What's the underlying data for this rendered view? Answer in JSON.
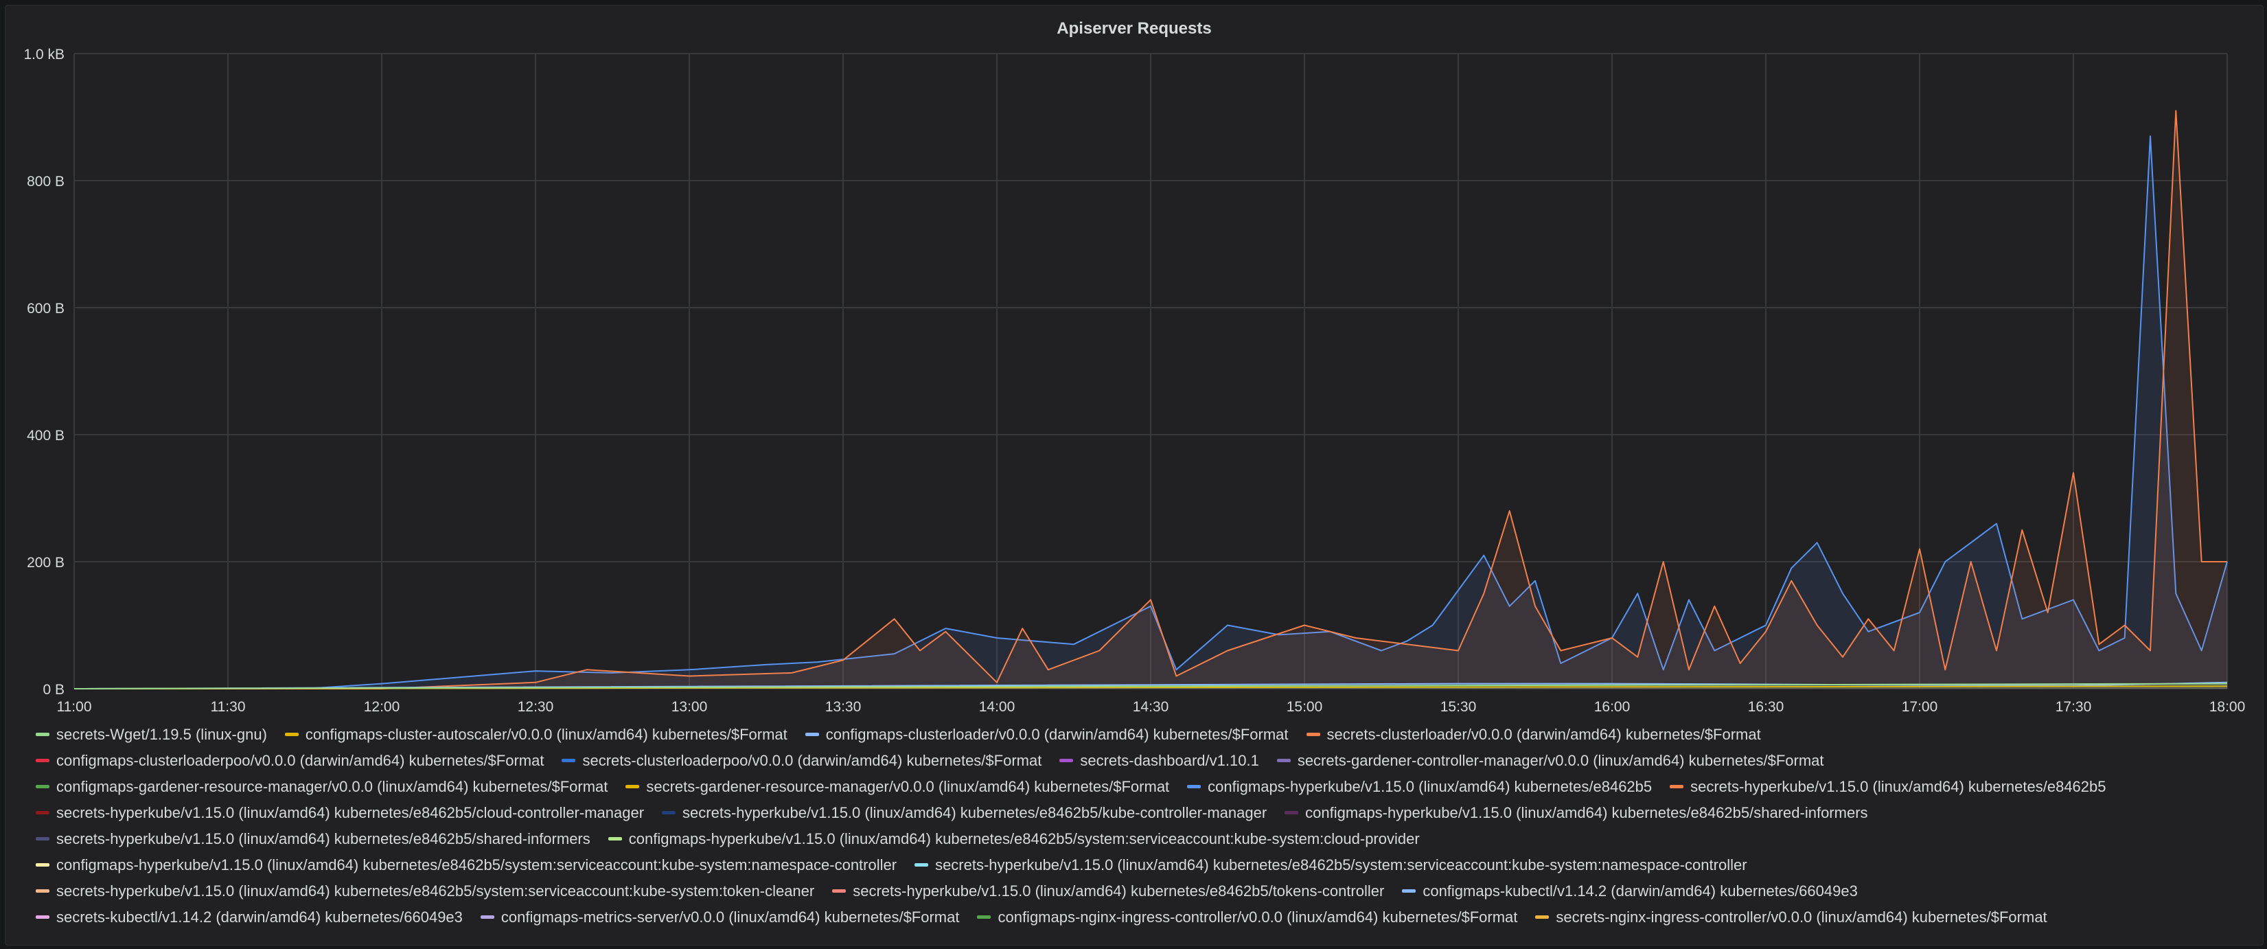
{
  "panel": {
    "title": "Apiserver Requests"
  },
  "chart_data": {
    "type": "area",
    "title": "Apiserver Requests",
    "x_ticks": [
      "11:00",
      "11:30",
      "12:00",
      "12:30",
      "13:00",
      "13:30",
      "14:00",
      "14:30",
      "15:00",
      "15:30",
      "16:00",
      "16:30",
      "17:00",
      "17:30",
      "18:00"
    ],
    "x_range": [
      "11:00",
      "18:00"
    ],
    "y_ticks": [
      "0 B",
      "200 B",
      "400 B",
      "600 B",
      "800 B",
      "1.0 kB"
    ],
    "y_range": [
      0,
      1000
    ],
    "y_unit": "B",
    "grid": true,
    "legend_position": "bottom",
    "series": [
      {
        "name": "configmaps-hyperkube/v1.15.0 (linux/amd64) kubernetes/e8462b5",
        "color": "#5794f2",
        "x": [
          "11:00",
          "11:45",
          "12:00",
          "12:15",
          "12:30",
          "12:45",
          "13:00",
          "13:15",
          "13:25",
          "13:40",
          "13:50",
          "14:00",
          "14:15",
          "14:30",
          "14:35",
          "14:45",
          "14:55",
          "15:05",
          "15:15",
          "15:20",
          "15:25",
          "15:35",
          "15:40",
          "15:45",
          "15:50",
          "16:00",
          "16:05",
          "16:10",
          "16:15",
          "16:20",
          "16:30",
          "16:35",
          "16:40",
          "16:45",
          "16:50",
          "17:00",
          "17:05",
          "17:10",
          "17:15",
          "17:20",
          "17:30",
          "17:35",
          "17:40",
          "17:45",
          "17:50",
          "17:55",
          "18:00"
        ],
        "values": [
          0,
          0,
          8,
          18,
          28,
          25,
          30,
          38,
          42,
          55,
          95,
          80,
          70,
          130,
          30,
          100,
          85,
          90,
          60,
          75,
          100,
          210,
          130,
          170,
          40,
          80,
          150,
          30,
          140,
          60,
          100,
          190,
          230,
          150,
          90,
          120,
          200,
          230,
          260,
          110,
          140,
          60,
          80,
          870,
          150,
          60,
          200
        ]
      },
      {
        "name": "secrets-hyperkube/v1.15.0 (linux/amd64) kubernetes/e8462b5",
        "color": "#f2804a",
        "x": [
          "11:00",
          "12:00",
          "12:30",
          "12:40",
          "13:00",
          "13:20",
          "13:30",
          "13:40",
          "13:45",
          "13:50",
          "14:00",
          "14:05",
          "14:10",
          "14:20",
          "14:30",
          "14:35",
          "14:45",
          "15:00",
          "15:10",
          "15:20",
          "15:30",
          "15:35",
          "15:40",
          "15:45",
          "15:50",
          "16:00",
          "16:05",
          "16:10",
          "16:15",
          "16:20",
          "16:25",
          "16:30",
          "16:35",
          "16:40",
          "16:45",
          "16:50",
          "16:55",
          "17:00",
          "17:05",
          "17:10",
          "17:15",
          "17:20",
          "17:25",
          "17:30",
          "17:35",
          "17:40",
          "17:45",
          "17:50",
          "17:55",
          "18:00"
        ],
        "values": [
          0,
          0,
          10,
          30,
          20,
          25,
          45,
          110,
          60,
          90,
          10,
          95,
          30,
          60,
          140,
          20,
          60,
          100,
          80,
          70,
          60,
          150,
          280,
          130,
          60,
          80,
          50,
          200,
          30,
          130,
          40,
          90,
          170,
          100,
          50,
          110,
          60,
          220,
          30,
          200,
          60,
          250,
          120,
          340,
          70,
          100,
          60,
          910,
          200,
          200
        ]
      },
      {
        "name": "configmaps-clusterloader/v0.0.0 (darwin/amd64) kubernetes/$Format",
        "color": "#8ab8ff",
        "x": [
          "11:00",
          "15:30",
          "16:00",
          "17:00",
          "17:30",
          "18:00"
        ],
        "values": [
          0,
          8,
          8,
          6,
          5,
          10
        ]
      },
      {
        "name": "configmaps-cluster-autoscaler/v0.0.0 (linux/amd64) kubernetes/$Format",
        "color": "#e0b400",
        "x": [
          "11:00",
          "18:00"
        ],
        "values": [
          0,
          4
        ]
      },
      {
        "name": "secrets-Wget/1.19.5 (linux-gnu)",
        "color": "#96d98d",
        "x": [
          "11:00",
          "18:00"
        ],
        "values": [
          0,
          8
        ]
      }
    ]
  },
  "legend": {
    "items": [
      {
        "label": "secrets-Wget/1.19.5 (linux-gnu)",
        "color": "#96d98d"
      },
      {
        "label": "configmaps-cluster-autoscaler/v0.0.0 (linux/amd64) kubernetes/$Format",
        "color": "#e0b400"
      },
      {
        "label": "configmaps-clusterloader/v0.0.0 (darwin/amd64) kubernetes/$Format",
        "color": "#8ab8ff"
      },
      {
        "label": "secrets-clusterloader/v0.0.0 (darwin/amd64) kubernetes/$Format",
        "color": "#f2804a"
      },
      {
        "label": "configmaps-clusterloaderpoo/v0.0.0 (darwin/amd64) kubernetes/$Format",
        "color": "#e02f44"
      },
      {
        "label": "secrets-clusterloaderpoo/v0.0.0 (darwin/amd64) kubernetes/$Format",
        "color": "#3274d9"
      },
      {
        "label": "secrets-dashboard/v1.10.1",
        "color": "#a352cc"
      },
      {
        "label": "secrets-gardener-controller-manager/v0.0.0 (linux/amd64) kubernetes/$Format",
        "color": "#806eb7"
      },
      {
        "label": "configmaps-gardener-resource-manager/v0.0.0 (linux/amd64) kubernetes/$Format",
        "color": "#56a64b"
      },
      {
        "label": "secrets-gardener-resource-manager/v0.0.0 (linux/amd64) kubernetes/$Format",
        "color": "#e0b400"
      },
      {
        "label": "configmaps-hyperkube/v1.15.0 (linux/amd64) kubernetes/e8462b5",
        "color": "#5794f2"
      },
      {
        "label": "secrets-hyperkube/v1.15.0 (linux/amd64) kubernetes/e8462b5",
        "color": "#f2804a"
      },
      {
        "label": "secrets-hyperkube/v1.15.0 (linux/amd64) kubernetes/e8462b5/cloud-controller-manager",
        "color": "#8f1919"
      },
      {
        "label": "secrets-hyperkube/v1.15.0 (linux/amd64) kubernetes/e8462b5/kube-controller-manager",
        "color": "#1f3f7a"
      },
      {
        "label": "configmaps-hyperkube/v1.15.0 (linux/amd64) kubernetes/e8462b5/shared-informers",
        "color": "#5a2d5d"
      },
      {
        "label": "secrets-hyperkube/v1.15.0 (linux/amd64) kubernetes/e8462b5/shared-informers",
        "color": "#4d4f7a"
      },
      {
        "label": "configmaps-hyperkube/v1.15.0 (linux/amd64) kubernetes/e8462b5/system:serviceaccount:kube-system:cloud-provider",
        "color": "#b4e88e"
      },
      {
        "label": "configmaps-hyperkube/v1.15.0 (linux/amd64) kubernetes/e8462b5/system:serviceaccount:kube-system:namespace-controller",
        "color": "#fff0a8"
      },
      {
        "label": "secrets-hyperkube/v1.15.0 (linux/amd64) kubernetes/e8462b5/system:serviceaccount:kube-system:namespace-controller",
        "color": "#8ae0f2"
      },
      {
        "label": "secrets-hyperkube/v1.15.0 (linux/amd64) kubernetes/e8462b5/system:serviceaccount:kube-system:token-cleaner",
        "color": "#f5b78a"
      },
      {
        "label": "secrets-hyperkube/v1.15.0 (linux/amd64) kubernetes/e8462b5/tokens-controller",
        "color": "#f2837c"
      },
      {
        "label": "configmaps-kubectl/v1.14.2 (darwin/amd64) kubernetes/66049e3",
        "color": "#8ab8ff"
      },
      {
        "label": "secrets-kubectl/v1.14.2 (darwin/amd64) kubernetes/66049e3",
        "color": "#e8a7e6"
      },
      {
        "label": "configmaps-metrics-server/v0.0.0 (linux/amd64) kubernetes/$Format",
        "color": "#b9a6e6"
      },
      {
        "label": "configmaps-nginx-ingress-controller/v0.0.0 (linux/amd64) kubernetes/$Format",
        "color": "#56a64b"
      },
      {
        "label": "secrets-nginx-ingress-controller/v0.0.0 (linux/amd64) kubernetes/$Format",
        "color": "#f2b33d"
      }
    ]
  }
}
